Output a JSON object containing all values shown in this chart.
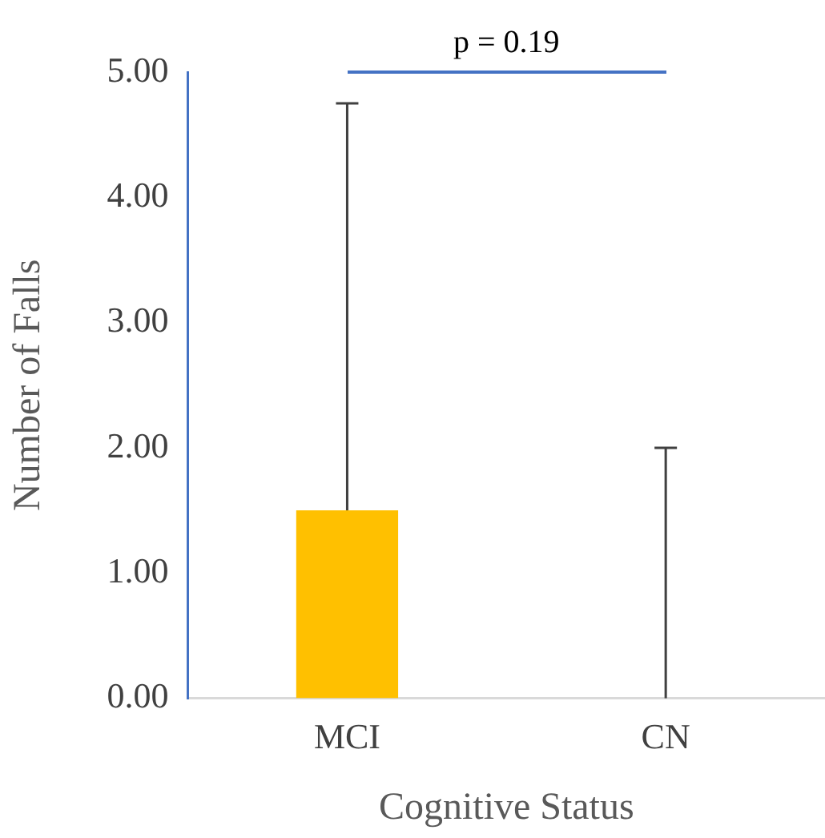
{
  "chart_data": {
    "type": "bar",
    "categories": [
      "MCI",
      "CN"
    ],
    "values": [
      1.5,
      0
    ],
    "color": "#ffc000",
    "errors": [
      [
        1.5,
        4.75
      ],
      [
        0,
        2
      ]
    ],
    "xlabel": "Cognitive Status",
    "ylabel": "Number of Falls",
    "ylim": [
      0,
      5
    ],
    "yticks": [
      {
        "value": 0,
        "label": "0.00"
      },
      {
        "value": 1,
        "label": "1.00"
      },
      {
        "value": 2,
        "label": "2.00"
      },
      {
        "value": 3,
        "label": "3.00"
      },
      {
        "value": 4,
        "label": "4.00"
      },
      {
        "value": 5,
        "label": "5.00"
      }
    ],
    "grid": false,
    "legend": false,
    "annotations": [
      "p = 0.19"
    ]
  }
}
